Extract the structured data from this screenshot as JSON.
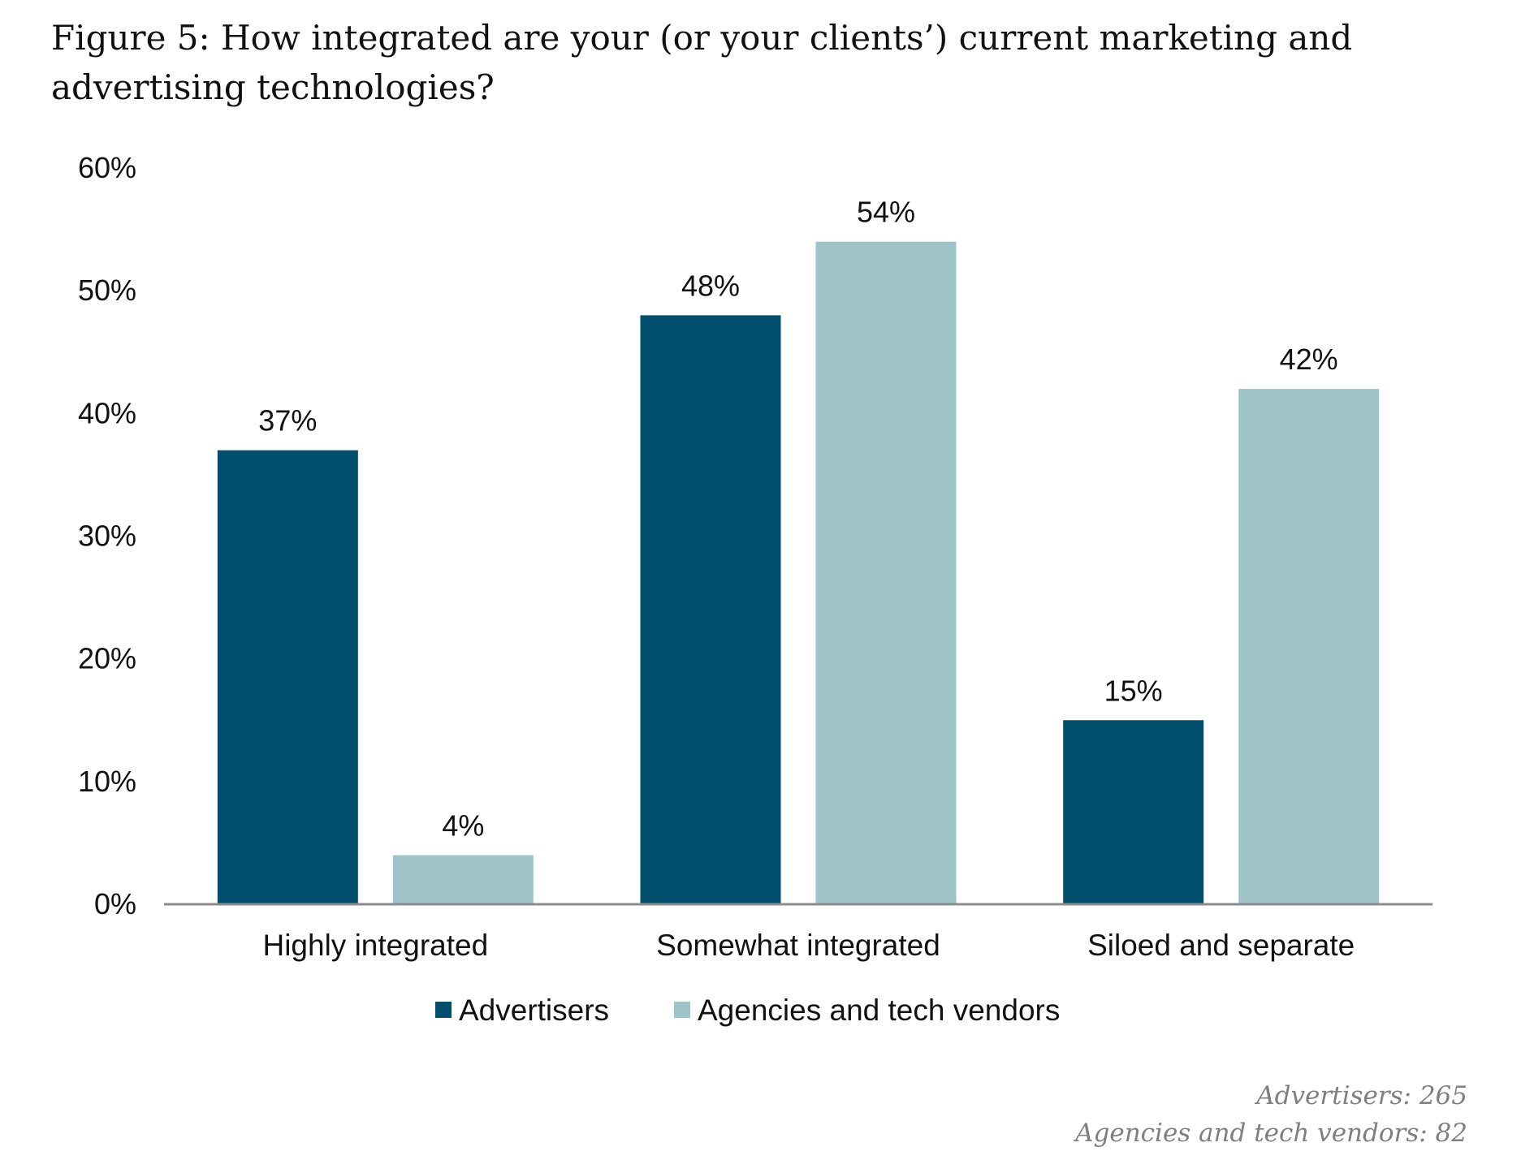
{
  "chart_data": {
    "type": "bar",
    "title": "Figure 5: How integrated are your (or your clients’) current marketing and advertising technologies?",
    "xlabel": "",
    "ylabel": "",
    "ylim": [
      0,
      60
    ],
    "yticks": [
      "0%",
      "10%",
      "20%",
      "30%",
      "40%",
      "50%",
      "60%"
    ],
    "ytick_values": [
      0,
      10,
      20,
      30,
      40,
      50,
      60
    ],
    "categories": [
      "Highly integrated",
      "Somewhat integrated",
      "Siloed and separate"
    ],
    "series": [
      {
        "name": "Advertisers",
        "color": "#024f6d",
        "values": [
          37,
          48,
          15
        ],
        "labels": [
          "37%",
          "48%",
          "15%"
        ]
      },
      {
        "name": "Agencies and tech vendors",
        "color": "#9ec4c9",
        "values": [
          4,
          54,
          42
        ],
        "labels": [
          "4%",
          "54%",
          "42%"
        ]
      }
    ],
    "legend": "bottom",
    "grid": false
  },
  "notes": [
    "Advertisers: 265",
    "Agencies and tech vendors: 82"
  ]
}
